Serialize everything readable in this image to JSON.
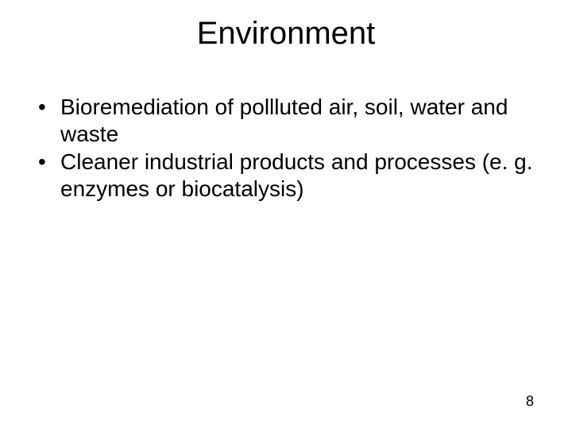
{
  "slide": {
    "title": "Environment",
    "bullets": [
      "Bioremediation of pollluted air, soil, water and waste",
      "Cleaner industrial products and processes (e. g. enzymes or biocatalysis)"
    ],
    "page_number": "8",
    "background_color": "#ffffff",
    "text_color": "#000000",
    "title_fontsize": 40,
    "body_fontsize": 28,
    "page_number_fontsize": 18,
    "font_family": "Arial"
  }
}
